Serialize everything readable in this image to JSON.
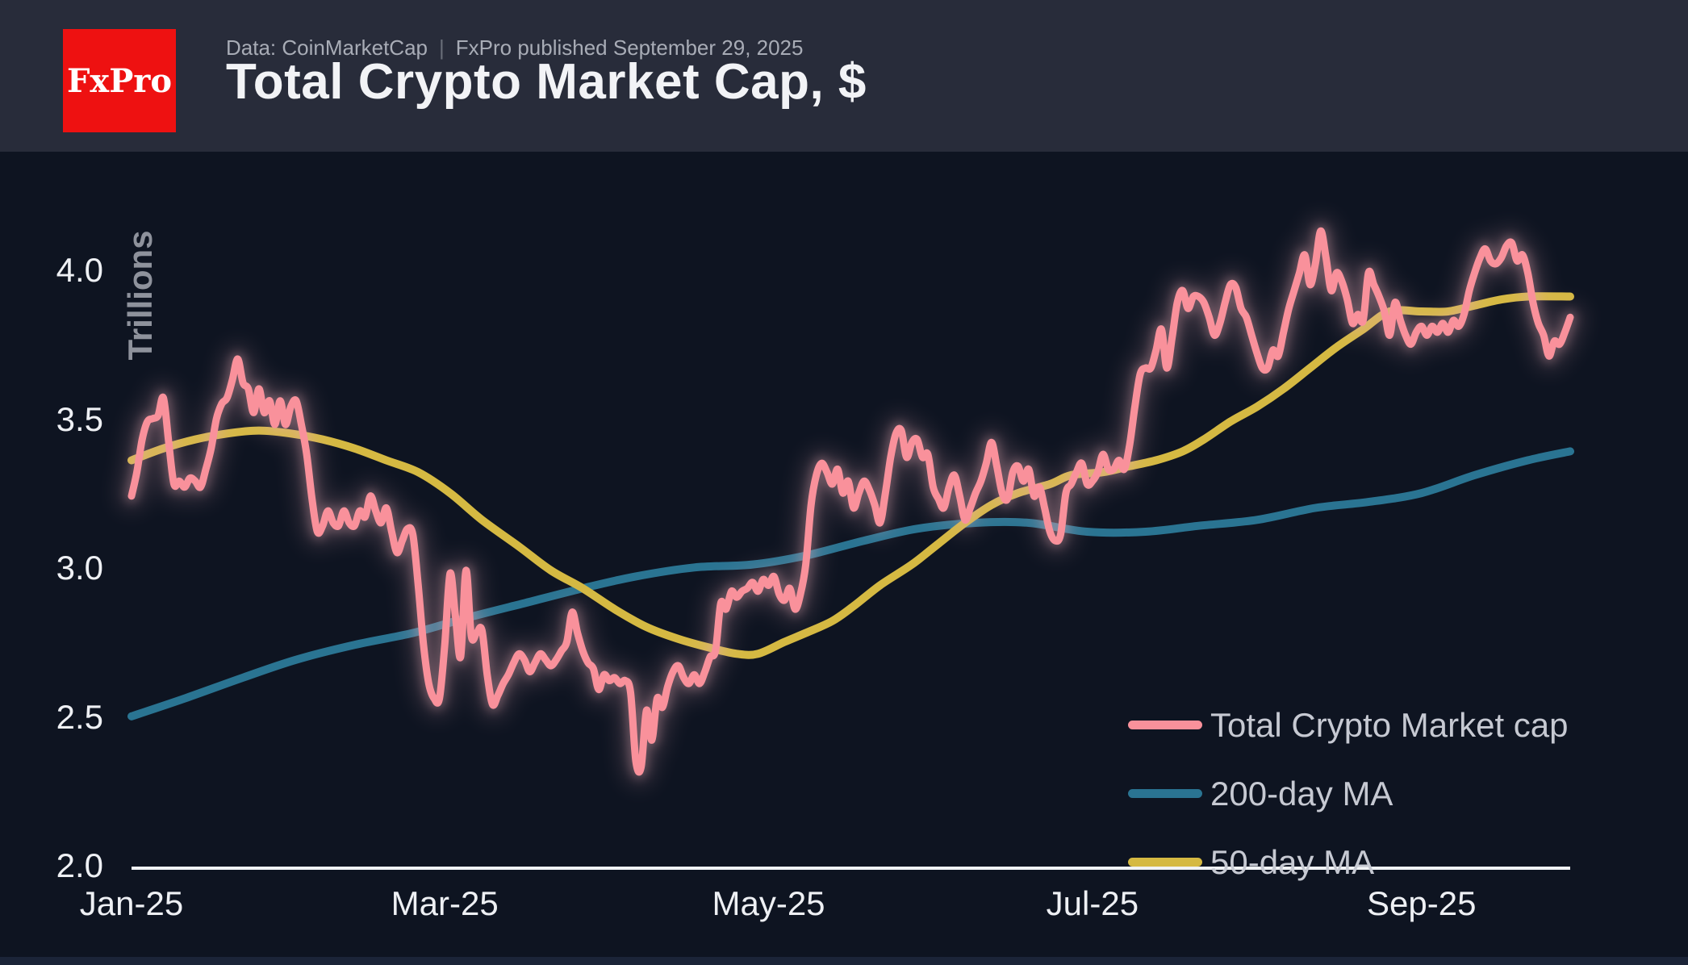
{
  "header": {
    "logo_text": "FxPro",
    "data_source": "Data: CoinMarketCap",
    "separator": "|",
    "published": "FxPro published September 29, 2025",
    "title": "Total Crypto Market Cap, $"
  },
  "colors": {
    "page_bg": "#0e1421",
    "header_bg": "#282c3a",
    "logo_red": "#ee1111",
    "axis_line": "#f0f2f5",
    "tick_text": "#eef0f4",
    "y_axis_label_text": "#8e929c",
    "legend_text": "#c6c9d2",
    "market_cap_pink": "#f9919b",
    "ma200_teal": "#2a7492",
    "ma50_yellow": "#d5b942",
    "glow": "#e5a9b4",
    "bottom_strip": "#1b2438"
  },
  "chart_data": {
    "type": "line",
    "title": "Total Crypto Market Cap, $",
    "ylabel": "Trillions",
    "x_unit": "days since Jan 1, 2025",
    "x_max_day": 271,
    "ylim": [
      2.0,
      4.0
    ],
    "grid": false,
    "legend_position": "bottom-right",
    "y_ticks": [
      {
        "value": 4.0,
        "label": "4.0"
      },
      {
        "value": 3.5,
        "label": "3.5"
      },
      {
        "value": 3.0,
        "label": "3.0"
      },
      {
        "value": 2.5,
        "label": "2.5"
      },
      {
        "value": 2.0,
        "label": "2.0"
      }
    ],
    "x_ticks": [
      {
        "day": 0,
        "label": "Jan-25"
      },
      {
        "day": 59,
        "label": "Mar-25"
      },
      {
        "day": 120,
        "label": "May-25"
      },
      {
        "day": 181,
        "label": "Jul-25"
      },
      {
        "day": 243,
        "label": "Sep-25"
      }
    ],
    "series": [
      {
        "name": "Total Crypto Market cap",
        "color": "#f9919b",
        "width": 9,
        "glow": true,
        "daily_values": [
          3.25,
          3.33,
          3.44,
          3.5,
          3.51,
          3.52,
          3.58,
          3.43,
          3.29,
          3.3,
          3.28,
          3.31,
          3.3,
          3.28,
          3.34,
          3.41,
          3.51,
          3.56,
          3.58,
          3.64,
          3.71,
          3.63,
          3.61,
          3.53,
          3.61,
          3.53,
          3.57,
          3.49,
          3.57,
          3.49,
          3.55,
          3.57,
          3.49,
          3.39,
          3.24,
          3.13,
          3.15,
          3.2,
          3.16,
          3.15,
          3.2,
          3.16,
          3.15,
          3.2,
          3.18,
          3.25,
          3.2,
          3.16,
          3.21,
          3.13,
          3.06,
          3.1,
          3.14,
          3.12,
          2.95,
          2.75,
          2.62,
          2.57,
          2.57,
          2.75,
          2.99,
          2.85,
          2.71,
          3.0,
          2.78,
          2.79,
          2.8,
          2.65,
          2.55,
          2.58,
          2.62,
          2.65,
          2.69,
          2.72,
          2.7,
          2.66,
          2.69,
          2.72,
          2.7,
          2.68,
          2.7,
          2.73,
          2.76,
          2.86,
          2.79,
          2.73,
          2.69,
          2.67,
          2.6,
          2.65,
          2.63,
          2.64,
          2.62,
          2.63,
          2.59,
          2.36,
          2.34,
          2.53,
          2.43,
          2.57,
          2.54,
          2.61,
          2.66,
          2.68,
          2.64,
          2.62,
          2.65,
          2.62,
          2.66,
          2.71,
          2.73,
          2.89,
          2.87,
          2.93,
          2.91,
          2.93,
          2.94,
          2.96,
          2.93,
          2.97,
          2.95,
          2.98,
          2.92,
          2.9,
          2.94,
          2.87,
          2.92,
          3.02,
          3.22,
          3.32,
          3.36,
          3.33,
          3.29,
          3.34,
          3.26,
          3.3,
          3.21,
          3.26,
          3.3,
          3.27,
          3.22,
          3.16,
          3.26,
          3.38,
          3.46,
          3.47,
          3.38,
          3.43,
          3.44,
          3.38,
          3.39,
          3.28,
          3.24,
          3.21,
          3.28,
          3.32,
          3.25,
          3.17,
          3.21,
          3.26,
          3.3,
          3.36,
          3.43,
          3.35,
          3.26,
          3.24,
          3.33,
          3.35,
          3.3,
          3.34,
          3.25,
          3.28,
          3.21,
          3.13,
          3.1,
          3.12,
          3.26,
          3.29,
          3.33,
          3.36,
          3.29,
          3.3,
          3.33,
          3.39,
          3.34,
          3.34,
          3.37,
          3.34,
          3.42,
          3.55,
          3.66,
          3.68,
          3.68,
          3.74,
          3.81,
          3.68,
          3.78,
          3.9,
          3.94,
          3.88,
          3.92,
          3.92,
          3.9,
          3.85,
          3.79,
          3.83,
          3.9,
          3.96,
          3.95,
          3.88,
          3.85,
          3.79,
          3.73,
          3.68,
          3.68,
          3.74,
          3.72,
          3.8,
          3.88,
          3.94,
          4.0,
          4.06,
          3.96,
          4.03,
          4.14,
          4.05,
          3.94,
          4.0,
          3.97,
          3.91,
          3.83,
          3.86,
          3.84,
          4.0,
          3.96,
          3.92,
          3.87,
          3.79,
          3.9,
          3.84,
          3.79,
          3.76,
          3.8,
          3.82,
          3.79,
          3.82,
          3.8,
          3.83,
          3.8,
          3.84,
          3.82,
          3.86,
          3.94,
          4.0,
          4.05,
          4.08,
          4.04,
          4.03,
          4.05,
          4.09,
          4.1,
          4.04,
          4.06,
          4.0,
          3.9,
          3.83,
          3.79,
          3.72,
          3.77,
          3.76,
          3.8,
          3.85
        ]
      },
      {
        "name": "200-day MA",
        "color": "#2a7492",
        "width": 10,
        "glow": false,
        "points": [
          [
            0,
            2.51
          ],
          [
            10,
            2.57
          ],
          [
            21,
            2.64
          ],
          [
            31,
            2.7
          ],
          [
            42,
            2.75
          ],
          [
            53,
            2.79
          ],
          [
            63,
            2.84
          ],
          [
            74,
            2.89
          ],
          [
            85,
            2.94
          ],
          [
            95,
            2.98
          ],
          [
            106,
            3.01
          ],
          [
            117,
            3.02
          ],
          [
            127,
            3.05
          ],
          [
            138,
            3.1
          ],
          [
            148,
            3.14
          ],
          [
            159,
            3.16
          ],
          [
            169,
            3.16
          ],
          [
            180,
            3.13
          ],
          [
            191,
            3.13
          ],
          [
            201,
            3.15
          ],
          [
            212,
            3.17
          ],
          [
            223,
            3.21
          ],
          [
            233,
            3.23
          ],
          [
            243,
            3.26
          ],
          [
            253,
            3.32
          ],
          [
            263,
            3.37
          ],
          [
            271,
            3.4
          ]
        ]
      },
      {
        "name": "50-day MA",
        "color": "#d5b942",
        "width": 10,
        "glow": false,
        "points": [
          [
            0,
            3.37
          ],
          [
            6,
            3.41
          ],
          [
            12,
            3.44
          ],
          [
            18,
            3.46
          ],
          [
            24,
            3.47
          ],
          [
            30,
            3.46
          ],
          [
            36,
            3.44
          ],
          [
            42,
            3.41
          ],
          [
            48,
            3.37
          ],
          [
            54,
            3.33
          ],
          [
            60,
            3.26
          ],
          [
            66,
            3.17
          ],
          [
            73,
            3.08
          ],
          [
            79,
            3.0
          ],
          [
            85,
            2.94
          ],
          [
            91,
            2.87
          ],
          [
            97,
            2.81
          ],
          [
            103,
            2.77
          ],
          [
            109,
            2.74
          ],
          [
            114,
            2.72
          ],
          [
            118,
            2.72
          ],
          [
            123,
            2.76
          ],
          [
            127,
            2.79
          ],
          [
            132,
            2.83
          ],
          [
            136,
            2.88
          ],
          [
            141,
            2.95
          ],
          [
            147,
            3.02
          ],
          [
            152,
            3.09
          ],
          [
            157,
            3.16
          ],
          [
            162,
            3.22
          ],
          [
            167,
            3.26
          ],
          [
            173,
            3.29
          ],
          [
            177,
            3.32
          ],
          [
            183,
            3.33
          ],
          [
            188,
            3.35
          ],
          [
            193,
            3.37
          ],
          [
            198,
            3.4
          ],
          [
            202,
            3.44
          ],
          [
            207,
            3.5
          ],
          [
            212,
            3.55
          ],
          [
            217,
            3.61
          ],
          [
            222,
            3.68
          ],
          [
            227,
            3.75
          ],
          [
            232,
            3.81
          ],
          [
            237,
            3.87
          ],
          [
            243,
            3.87
          ],
          [
            248,
            3.87
          ],
          [
            253,
            3.89
          ],
          [
            258,
            3.91
          ],
          [
            263,
            3.92
          ],
          [
            271,
            3.92
          ]
        ]
      }
    ]
  }
}
